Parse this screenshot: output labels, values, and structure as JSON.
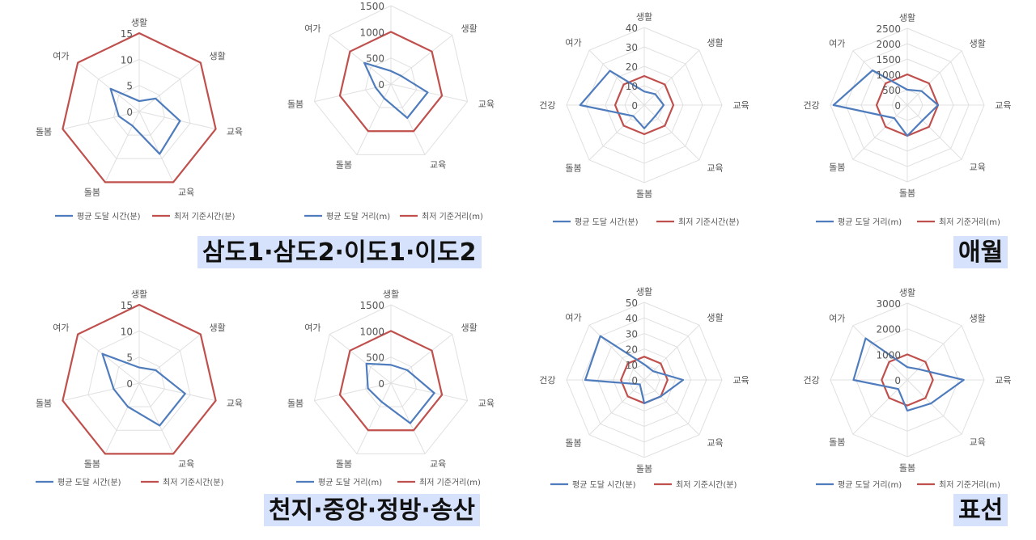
{
  "colors": {
    "avg": "#4f7cbd",
    "std": "#c0504d",
    "grid": "#e0e0e0",
    "text": "#666666"
  },
  "labels": {
    "avg_time": "평균 도달 시간(분)",
    "std_time": "최저 기준시간(분)",
    "avg_dist": "평균 도달 거리(m)",
    "std_dist": "최저 기준거리(m)"
  },
  "regions": {
    "r1": "삼도1·삼도2·이도1·이도2",
    "r2": "애월",
    "r3": "천지·중앙·정방·송산",
    "r4": "표선"
  },
  "chart_data": [
    {
      "type": "radar",
      "axes": [
        "생활",
        "생활",
        "교육",
        "교육",
        "돌봄",
        "돌봄",
        "여가"
      ],
      "rmax": 15,
      "ticks": [
        0,
        5,
        10,
        15
      ],
      "series": [
        {
          "name": "평균 도달 시간(분)",
          "values": [
            2,
            4,
            8,
            9,
            3,
            4,
            7
          ]
        },
        {
          "name": "최저 기준시간(분)",
          "values": [
            15,
            15,
            15,
            15,
            15,
            15,
            15
          ]
        }
      ]
    },
    {
      "type": "radar",
      "axes": [
        "생활",
        "생활",
        "교육",
        "교육",
        "돌봄",
        "돌봄",
        "여가"
      ],
      "rmax": 1500,
      "ticks": [
        0,
        500,
        1000,
        1500
      ],
      "series": [
        {
          "name": "평균 도달 거리(m)",
          "values": [
            250,
            250,
            720,
            720,
            300,
            300,
            650
          ]
        },
        {
          "name": "최저 기준거리(m)",
          "values": [
            1000,
            1000,
            1000,
            1000,
            1000,
            1000,
            1000
          ]
        }
      ]
    },
    {
      "type": "radar",
      "axes": [
        "생활",
        "생활",
        "교육",
        "교육",
        "돌봄",
        "돌봄",
        "건강",
        "여가"
      ],
      "rmax": 40,
      "ticks": [
        0,
        10,
        20,
        30,
        40
      ],
      "series": [
        {
          "name": "평균 도달 시간(분)",
          "values": [
            7,
            8,
            10,
            8,
            12,
            8,
            33,
            25
          ]
        },
        {
          "name": "최저 기준시간(분)",
          "values": [
            15,
            15,
            15,
            15,
            15,
            15,
            15,
            15
          ]
        }
      ]
    },
    {
      "type": "radar",
      "axes": [
        "생활",
        "생활",
        "교육",
        "교육",
        "돌봄",
        "돌봄",
        "건강",
        "여가"
      ],
      "rmax": 2500,
      "ticks": [
        0,
        500,
        1000,
        1500,
        2000,
        2500
      ],
      "series": [
        {
          "name": "평균 도달 거리(m)",
          "values": [
            500,
            650,
            1000,
            700,
            1000,
            600,
            2400,
            1600
          ]
        },
        {
          "name": "최저 기준거리(m)",
          "values": [
            1000,
            1000,
            1000,
            1000,
            1000,
            1000,
            1000,
            1000
          ]
        }
      ]
    },
    {
      "type": "radar",
      "axes": [
        "생활",
        "생활",
        "교육",
        "교육",
        "돌봄",
        "돌봄",
        "여가"
      ],
      "rmax": 15,
      "ticks": [
        0,
        5,
        10,
        15
      ],
      "series": [
        {
          "name": "평균 도달 시간(분)",
          "values": [
            3,
            4,
            9,
            9,
            5,
            5,
            9
          ]
        },
        {
          "name": "최저 기준시간(분)",
          "values": [
            15,
            15,
            15,
            15,
            15,
            15,
            15
          ]
        }
      ]
    },
    {
      "type": "radar",
      "axes": [
        "생활",
        "생활",
        "교육",
        "교육",
        "돌봄",
        "돌봄",
        "여가"
      ],
      "rmax": 1500,
      "ticks": [
        0,
        500,
        1000,
        1500
      ],
      "series": [
        {
          "name": "평균 도달 거리(m)",
          "values": [
            350,
            400,
            850,
            850,
            400,
            450,
            600
          ]
        },
        {
          "name": "최저 기준거리(m)",
          "values": [
            1000,
            1000,
            1000,
            1000,
            1000,
            1000,
            1000
          ]
        }
      ]
    },
    {
      "type": "radar",
      "axes": [
        "생활",
        "생활",
        "교육",
        "교육",
        "돌봄",
        "돌봄",
        "건강",
        "여가"
      ],
      "rmax": 50,
      "ticks": [
        0,
        10,
        20,
        30,
        40,
        50
      ],
      "series": [
        {
          "name": "평균 도달 시간(분)",
          "values": [
            10,
            8,
            25,
            15,
            15,
            4,
            38,
            40
          ]
        },
        {
          "name": "최저 기준시간(분)",
          "values": [
            15,
            15,
            15,
            15,
            15,
            15,
            15,
            15
          ]
        }
      ]
    },
    {
      "type": "radar",
      "axes": [
        "생활",
        "생활",
        "교육",
        "교육",
        "돌봄",
        "돌봄",
        "건강",
        "여가"
      ],
      "rmax": 3000,
      "ticks": [
        0,
        1000,
        2000,
        3000
      ],
      "series": [
        {
          "name": "평균 도달 거리(m)",
          "values": [
            500,
            600,
            2200,
            1300,
            1200,
            500,
            2100,
            2300
          ]
        },
        {
          "name": "최저 기준거리(m)",
          "values": [
            1000,
            1000,
            1000,
            1000,
            1000,
            1000,
            1000,
            1000
          ]
        }
      ]
    }
  ]
}
